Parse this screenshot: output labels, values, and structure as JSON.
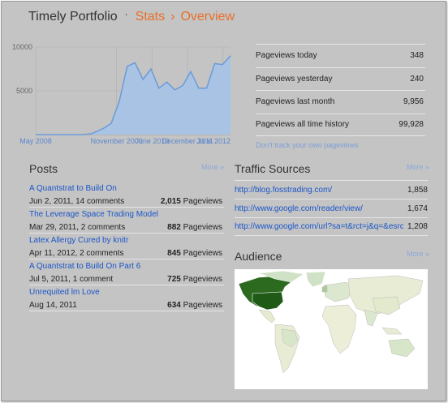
{
  "header": {
    "app_title": "Timely Portfolio",
    "breadcrumb_separator_dot": "·",
    "crumb_stats": "Stats",
    "crumb_arrow": "›",
    "crumb_overview": "Overview"
  },
  "colors": {
    "background": "#c4c4c4",
    "accent_orange": "#e8702a",
    "link_blue": "#1a56c8",
    "chart_fill": "#a9c3e4",
    "chart_line": "#6b9bd8",
    "map_high": "#2b6a1f",
    "map_low": "#ccdfc2"
  },
  "chart_data": {
    "type": "area",
    "y_ticks": [
      "10000",
      "5000"
    ],
    "x_ticks": [
      "May 2008",
      "November 2009",
      "June 2010",
      "December 2011",
      "June 2012"
    ],
    "ylim": [
      0,
      10000
    ],
    "x": [
      "2008-05",
      "2008-09",
      "2009-01",
      "2009-05",
      "2009-07",
      "2009-10",
      "2009-12",
      "2010-02",
      "2010-04",
      "2010-06",
      "2010-08",
      "2010-10",
      "2010-12",
      "2011-02",
      "2011-04",
      "2011-06",
      "2011-08",
      "2011-10",
      "2011-12",
      "2012-02",
      "2012-04",
      "2012-06"
    ],
    "values": [
      0,
      0,
      0,
      0,
      100,
      700,
      1300,
      3800,
      7800,
      8200,
      6300,
      7500,
      5300,
      6000,
      5100,
      5600,
      7200,
      5300,
      5300,
      8100,
      8000,
      9000
    ],
    "grid": true
  },
  "stats": [
    {
      "label": "Pageviews today",
      "value": "348"
    },
    {
      "label": "Pageviews yesterday",
      "value": "240"
    },
    {
      "label": "Pageviews last month",
      "value": "9,956"
    },
    {
      "label": "Pageviews all time history",
      "value": "99,928"
    }
  ],
  "dont_track_link": "Don't track your own pageviews",
  "posts": {
    "title": "Posts",
    "more": "More »",
    "items": [
      {
        "title": "A Quantstrat to Build On",
        "meta": "Jun 2, 2011, 14 comments",
        "views": "2,015",
        "views_label": "Pageviews"
      },
      {
        "title": "The Leverage Space Trading Model",
        "meta": "Mar 29, 2011, 2 comments",
        "views": "882",
        "views_label": "Pageviews"
      },
      {
        "title": "Latex Allergy Cured by knitr",
        "meta": "Apr 11, 2012, 2 comments",
        "views": "845",
        "views_label": "Pageviews"
      },
      {
        "title": "A Quantstrat to Build On Part 6",
        "meta": "Jul 5, 2011, 1 comment",
        "views": "725",
        "views_label": "Pageviews"
      },
      {
        "title": "Unrequited lm Love",
        "meta": "Aug 14, 2011",
        "views": "634",
        "views_label": "Pageviews"
      }
    ]
  },
  "traffic": {
    "title": "Traffic Sources",
    "more": "More »",
    "items": [
      {
        "url": "http://blog.fosstrading.com/",
        "count": "1,858"
      },
      {
        "url": "http://www.google.com/reader/view/",
        "count": "1,674"
      },
      {
        "url": "http://www.google.com/url?sa=t&rct=j&q=&esrc=s&s",
        "count": "1,208"
      }
    ]
  },
  "audience": {
    "title": "Audience",
    "more": "More »"
  }
}
